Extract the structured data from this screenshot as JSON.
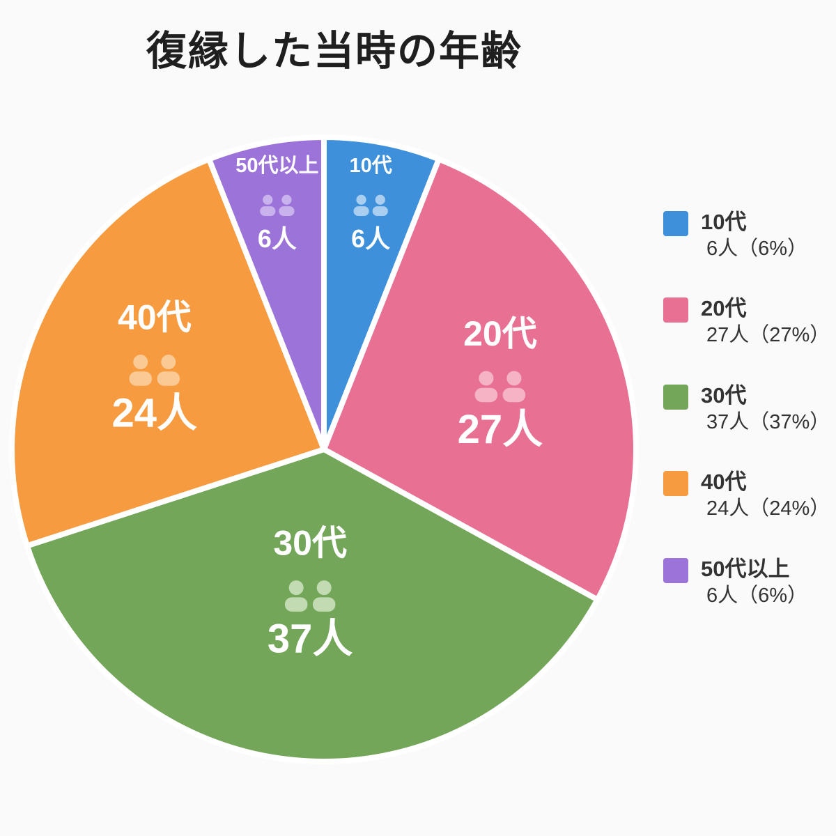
{
  "title": "復縁した当時の年齢",
  "chart_data": {
    "type": "pie",
    "title": "復縁した当時の年齢",
    "unit_suffix": "人",
    "categories": [
      "10代",
      "20代",
      "30代",
      "40代",
      "50代以上"
    ],
    "values": [
      6,
      27,
      37,
      24,
      6
    ],
    "percents": [
      6,
      27,
      37,
      24,
      6
    ],
    "colors": [
      "#3E90DB",
      "#E87093",
      "#74A65A",
      "#F69B40",
      "#9C74D9"
    ],
    "icon_colors": [
      "#A9CEF0",
      "#F4B4C6",
      "#C2DBB2",
      "#FBC994",
      "#C9B3EC"
    ],
    "slice_counts": [
      "6人",
      "27人",
      "37人",
      "24人",
      "6人"
    ],
    "start_angle_deg": 0,
    "direction": "clockwise",
    "legend_position": "right",
    "legend": [
      {
        "label": "10代",
        "value": "6人（6%）",
        "color": "#3E90DB"
      },
      {
        "label": "20代",
        "value": "27人（27%）",
        "color": "#E87093"
      },
      {
        "label": "30代",
        "value": "37人（37%）",
        "color": "#74A65A"
      },
      {
        "label": "40代",
        "value": "24人（24%）",
        "color": "#F69B40"
      },
      {
        "label": "50代以上",
        "value": "6人（6%）",
        "color": "#9C74D9"
      }
    ]
  }
}
